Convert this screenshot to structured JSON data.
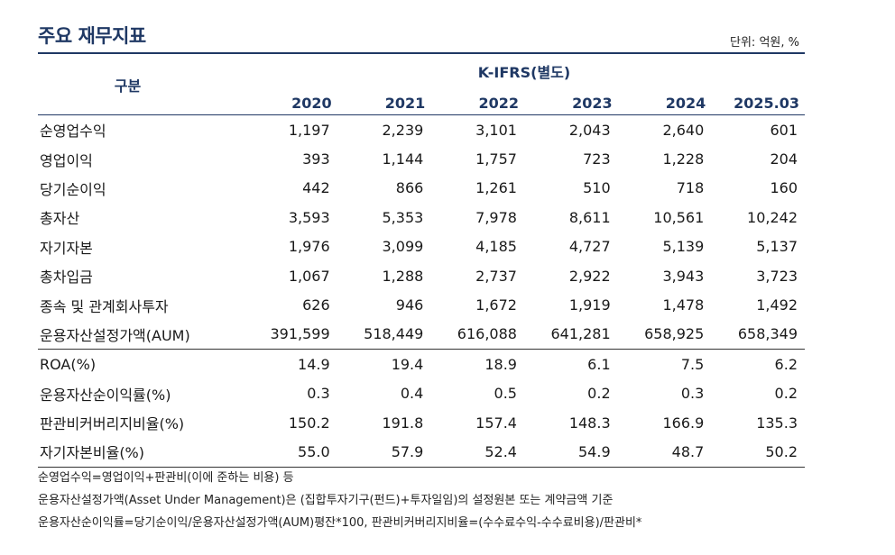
{
  "title": "주요 재무지표",
  "unit": "단위: 억원, %",
  "header": {
    "category": "구분",
    "group": "K-IFRS(별도)",
    "years": [
      "2020",
      "2021",
      "2022",
      "2023",
      "2024",
      "2025.03"
    ]
  },
  "rows": [
    {
      "label": "순영업수익",
      "values": [
        "1,197",
        "2,239",
        "3,101",
        "2,043",
        "2,640",
        "601"
      ]
    },
    {
      "label": "영업이익",
      "values": [
        "393",
        "1,144",
        "1,757",
        "723",
        "1,228",
        "204"
      ]
    },
    {
      "label": "당기순이익",
      "values": [
        "442",
        "866",
        "1,261",
        "510",
        "718",
        "160"
      ]
    },
    {
      "label": "총자산",
      "values": [
        "3,593",
        "5,353",
        "7,978",
        "8,611",
        "10,561",
        "10,242"
      ]
    },
    {
      "label": "자기자본",
      "values": [
        "1,976",
        "3,099",
        "4,185",
        "4,727",
        "5,139",
        "5,137"
      ]
    },
    {
      "label": "총차입금",
      "values": [
        "1,067",
        "1,288",
        "2,737",
        "2,922",
        "3,943",
        "3,723"
      ]
    },
    {
      "label": "종속 및 관계회사투자",
      "values": [
        "626",
        "946",
        "1,672",
        "1,919",
        "1,478",
        "1,492"
      ]
    },
    {
      "label": "운용자산설정가액(AUM)",
      "values": [
        "391,599",
        "518,449",
        "616,088",
        "641,281",
        "658,925",
        "658,349"
      ]
    },
    {
      "label": "ROA(%)",
      "values": [
        "14.9",
        "19.4",
        "18.9",
        "6.1",
        "7.5",
        "6.2"
      ]
    },
    {
      "label": "운용자산순이익률(%)",
      "values": [
        "0.3",
        "0.4",
        "0.5",
        "0.2",
        "0.3",
        "0.2"
      ]
    },
    {
      "label": "판관비커버리지비율(%)",
      "values": [
        "150.2",
        "191.8",
        "157.4",
        "148.3",
        "166.9",
        "135.3"
      ]
    },
    {
      "label": "자기자본비율(%)",
      "values": [
        "55.0",
        "57.9",
        "52.4",
        "54.9",
        "48.7",
        "50.2"
      ]
    }
  ],
  "notes": [
    "순영업수익=영업이익+판관비(이에 준하는 비용) 등",
    "운용자산설정가액(Asset Under Management)은 (집합투자기구(펀드)+투자일임)의 설정원본 또는 계약금액 기준",
    "운용자산순이익률=당기순이익/운용자산설정가액(AUM)평잔*100, 판관비커버리지비율=(수수료수익-수수료비용)/판관비*"
  ]
}
